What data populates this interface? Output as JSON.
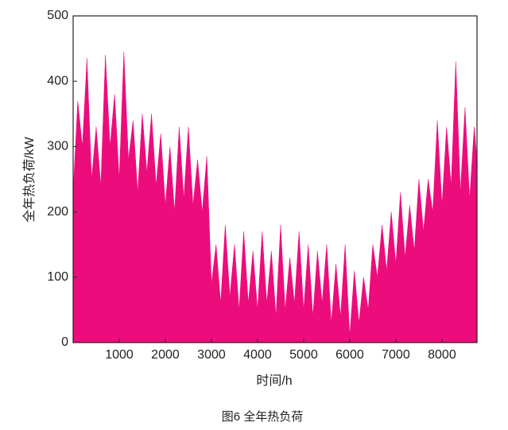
{
  "chart_data": {
    "type": "area",
    "caption": "图6 全年热负荷",
    "xlabel": "时间/h",
    "ylabel": "全年热负荷/kW",
    "color": "#ec0c7c",
    "xlim": [
      0,
      8760
    ],
    "ylim": [
      0,
      500
    ],
    "xticks": [
      1000,
      2000,
      3000,
      4000,
      5000,
      6000,
      7000,
      8000
    ],
    "yticks": [
      0,
      100,
      200,
      300,
      400,
      500
    ],
    "x": [
      0,
      100,
      200,
      300,
      400,
      500,
      600,
      700,
      800,
      900,
      1000,
      1100,
      1200,
      1300,
      1400,
      1500,
      1600,
      1700,
      1800,
      1900,
      2000,
      2100,
      2200,
      2300,
      2400,
      2500,
      2600,
      2700,
      2800,
      2900,
      3000,
      3100,
      3200,
      3300,
      3400,
      3500,
      3600,
      3700,
      3800,
      3900,
      4000,
      4100,
      4200,
      4300,
      4400,
      4500,
      4600,
      4700,
      4800,
      4900,
      5000,
      5100,
      5200,
      5300,
      5400,
      5500,
      5600,
      5700,
      5800,
      5900,
      6000,
      6100,
      6200,
      6300,
      6400,
      6500,
      6600,
      6700,
      6800,
      6900,
      7000,
      7100,
      7200,
      7300,
      7400,
      7500,
      7600,
      7700,
      7800,
      7900,
      8000,
      8100,
      8200,
      8300,
      8400,
      8500,
      8600,
      8700,
      8760
    ],
    "values": [
      230,
      370,
      300,
      435,
      250,
      330,
      240,
      440,
      300,
      380,
      250,
      445,
      280,
      340,
      230,
      350,
      260,
      350,
      240,
      320,
      210,
      300,
      200,
      330,
      220,
      330,
      210,
      280,
      200,
      285,
      90,
      150,
      60,
      180,
      70,
      150,
      50,
      170,
      60,
      140,
      50,
      170,
      60,
      140,
      40,
      180,
      50,
      130,
      60,
      170,
      50,
      150,
      40,
      140,
      60,
      150,
      30,
      120,
      40,
      150,
      10,
      110,
      30,
      100,
      50,
      150,
      100,
      180,
      110,
      200,
      120,
      230,
      130,
      210,
      140,
      250,
      170,
      250,
      200,
      340,
      210,
      330,
      240,
      430,
      230,
      360,
      220,
      330,
      280
    ]
  }
}
